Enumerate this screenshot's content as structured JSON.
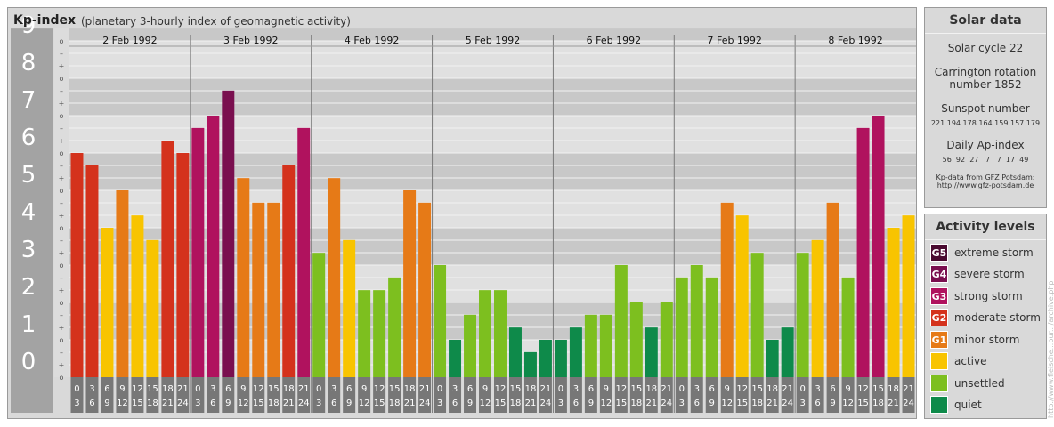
{
  "header": {
    "title": "Kp-index",
    "subtitle": "(planetary 3-hourly index of geomagnetic activity)"
  },
  "chart_data": {
    "type": "bar",
    "title": "Kp-index",
    "subtitle": "(planetary 3-hourly index of geomagnetic activity)",
    "ylim": [
      0,
      9.33
    ],
    "y_ticks": [
      "0",
      "1",
      "2",
      "3",
      "4",
      "5",
      "6",
      "7",
      "8",
      "9"
    ],
    "minor_ticks": [
      "o",
      "+",
      "–"
    ],
    "days": [
      "2 Feb 1992",
      "3 Feb 1992",
      "4 Feb 1992",
      "5 Feb 1992",
      "6 Feb 1992",
      "7 Feb 1992",
      "8 Feb 1992"
    ],
    "interval_top": [
      "0",
      "3",
      "6",
      "9",
      "12",
      "15",
      "18",
      "21"
    ],
    "interval_bottom": [
      "3",
      "6",
      "9",
      "12",
      "15",
      "18",
      "21",
      "24"
    ],
    "series": [
      {
        "values": [
          6,
          5.67,
          4,
          5,
          4.33,
          3.67,
          6.33,
          6,
          6.67,
          7,
          7.67,
          5.33,
          4.67,
          4.67,
          5.67,
          6.67,
          3.33,
          5.33,
          3.67,
          2.33,
          2.33,
          2.67,
          5,
          4.67,
          3,
          1,
          1.67,
          2.33,
          2.33,
          1.33,
          0.67,
          1,
          1,
          1.33,
          1.67,
          1.67,
          3,
          2,
          1.33,
          2,
          2.67,
          3,
          2.67,
          4.67,
          4.33,
          3.33,
          1,
          1.33,
          3.33,
          3.67,
          4.67,
          2.67,
          6.67,
          7,
          4,
          4.33
        ]
      }
    ],
    "grid": true
  },
  "solar": {
    "title": "Solar data",
    "cycle": "Solar cycle 22",
    "carrington_line1": "Carrington rotation",
    "carrington_line2": "number 1852",
    "sunspot_title": "Sunspot number",
    "sunspot_values": "221 194 178 164 159 157 179",
    "ap_title": "Daily Ap-index",
    "ap_values": "56  92  27   7   7  17  49",
    "source_line1": "Kp-data from GFZ Potsdam:",
    "source_line2": "http://www.gfz-potsdam.de"
  },
  "levels": {
    "title": "Activity levels",
    "items": [
      {
        "code": "G5",
        "label": "extreme storm",
        "color": "#4a0a30"
      },
      {
        "code": "G4",
        "label": "severe storm",
        "color": "#7a0f4f"
      },
      {
        "code": "G3",
        "label": "strong storm",
        "color": "#b0125e"
      },
      {
        "code": "G2",
        "label": "moderate storm",
        "color": "#d4321c"
      },
      {
        "code": "G1",
        "label": "minor storm",
        "color": "#e67a17"
      },
      {
        "code": "",
        "label": "active",
        "color": "#f8c400"
      },
      {
        "code": "",
        "label": "unsettled",
        "color": "#7dbf1f"
      },
      {
        "code": "",
        "label": "quiet",
        "color": "#0e8a4a"
      }
    ]
  },
  "watermark": "http://www.fleische...bur.../archive.php",
  "colors": {
    "band_dark": "#c8c8c8",
    "band_light": "#e0e0e0",
    "axis_label": "#a3a3a3",
    "axis_number": "#ffffff",
    "interval_box": "#777777"
  }
}
